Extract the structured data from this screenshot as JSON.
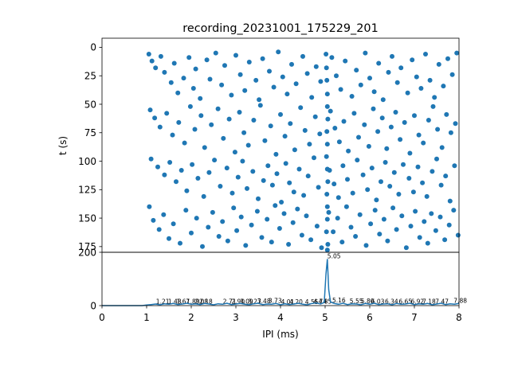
{
  "chart_data": [
    {
      "type": "scatter",
      "title": "recording_20231001_175229_201",
      "xlabel": "",
      "ylabel": "t (s)",
      "xlim": [
        0,
        8
      ],
      "ylim": [
        180,
        -8
      ],
      "y_inverted": true,
      "yticks": [
        0,
        25,
        50,
        75,
        100,
        125,
        150,
        175
      ],
      "color": "#1f77b4",
      "points": [
        [
          1.05,
          6
        ],
        [
          1.12,
          12
        ],
        [
          1.2,
          18
        ],
        [
          1.32,
          8
        ],
        [
          1.4,
          22
        ],
        [
          1.55,
          31
        ],
        [
          1.62,
          14
        ],
        [
          1.7,
          40
        ],
        [
          1.83,
          27
        ],
        [
          1.95,
          9
        ],
        [
          2.05,
          36
        ],
        [
          2.1,
          19
        ],
        [
          2.2,
          45
        ],
        [
          2.35,
          11
        ],
        [
          2.42,
          28
        ],
        [
          2.55,
          5
        ],
        [
          2.68,
          33
        ],
        [
          2.75,
          16
        ],
        [
          2.9,
          42
        ],
        [
          3.0,
          7
        ],
        [
          3.1,
          24
        ],
        [
          3.2,
          38
        ],
        [
          3.3,
          13
        ],
        [
          3.45,
          29
        ],
        [
          3.52,
          46
        ],
        [
          3.6,
          10
        ],
        [
          3.75,
          21
        ],
        [
          3.85,
          35
        ],
        [
          3.95,
          4
        ],
        [
          4.05,
          26
        ],
        [
          4.15,
          41
        ],
        [
          4.25,
          15
        ],
        [
          4.35,
          32
        ],
        [
          4.5,
          8
        ],
        [
          4.6,
          23
        ],
        [
          4.7,
          44
        ],
        [
          4.8,
          17
        ],
        [
          4.9,
          30
        ],
        [
          5.02,
          6
        ],
        [
          5.03,
          18
        ],
        [
          5.04,
          29
        ],
        [
          5.05,
          41
        ],
        [
          5.05,
          52
        ],
        [
          5.06,
          63
        ],
        [
          5.04,
          74
        ],
        [
          5.05,
          85
        ],
        [
          5.03,
          96
        ],
        [
          5.05,
          107
        ],
        [
          5.06,
          118
        ],
        [
          5.04,
          129
        ],
        [
          5.05,
          140
        ],
        [
          5.05,
          151
        ],
        [
          5.03,
          162
        ],
        [
          5.06,
          173
        ],
        [
          5.05,
          178
        ],
        [
          5.15,
          9
        ],
        [
          5.25,
          25
        ],
        [
          5.35,
          37
        ],
        [
          5.45,
          12
        ],
        [
          5.6,
          43
        ],
        [
          5.7,
          20
        ],
        [
          5.8,
          33
        ],
        [
          5.9,
          5
        ],
        [
          6.0,
          27
        ],
        [
          6.1,
          39
        ],
        [
          6.2,
          14
        ],
        [
          6.3,
          46
        ],
        [
          6.42,
          22
        ],
        [
          6.5,
          8
        ],
        [
          6.62,
          31
        ],
        [
          6.7,
          18
        ],
        [
          6.85,
          40
        ],
        [
          6.95,
          11
        ],
        [
          7.05,
          26
        ],
        [
          7.15,
          36
        ],
        [
          7.25,
          6
        ],
        [
          7.35,
          29
        ],
        [
          7.45,
          44
        ],
        [
          7.55,
          15
        ],
        [
          7.65,
          34
        ],
        [
          7.75,
          10
        ],
        [
          7.85,
          24
        ],
        [
          7.95,
          5
        ],
        [
          1.08,
          55
        ],
        [
          1.18,
          62
        ],
        [
          1.3,
          70
        ],
        [
          1.45,
          58
        ],
        [
          1.58,
          77
        ],
        [
          1.72,
          66
        ],
        [
          1.85,
          84
        ],
        [
          1.98,
          52
        ],
        [
          2.08,
          72
        ],
        [
          2.22,
          60
        ],
        [
          2.3,
          88
        ],
        [
          2.45,
          68
        ],
        [
          2.6,
          54
        ],
        [
          2.72,
          80
        ],
        [
          2.85,
          63
        ],
        [
          2.98,
          92
        ],
        [
          3.08,
          57
        ],
        [
          3.18,
          75
        ],
        [
          3.28,
          86
        ],
        [
          3.4,
          64
        ],
        [
          3.55,
          51
        ],
        [
          3.65,
          82
        ],
        [
          3.78,
          69
        ],
        [
          3.9,
          94
        ],
        [
          4.0,
          59
        ],
        [
          4.1,
          78
        ],
        [
          4.22,
          67
        ],
        [
          4.32,
          90
        ],
        [
          4.45,
          53
        ],
        [
          4.55,
          73
        ],
        [
          4.65,
          85
        ],
        [
          4.78,
          61
        ],
        [
          4.88,
          76
        ],
        [
          5.12,
          56
        ],
        [
          5.22,
          71
        ],
        [
          5.32,
          83
        ],
        [
          5.42,
          65
        ],
        [
          5.52,
          91
        ],
        [
          5.65,
          58
        ],
        [
          5.75,
          79
        ],
        [
          5.88,
          68
        ],
        [
          5.98,
          87
        ],
        [
          6.08,
          54
        ],
        [
          6.18,
          74
        ],
        [
          6.28,
          62
        ],
        [
          6.38,
          89
        ],
        [
          6.48,
          70
        ],
        [
          6.58,
          57
        ],
        [
          6.68,
          81
        ],
        [
          6.78,
          66
        ],
        [
          6.9,
          93
        ],
        [
          7.0,
          60
        ],
        [
          7.1,
          77
        ],
        [
          7.2,
          84
        ],
        [
          7.32,
          64
        ],
        [
          7.42,
          52
        ],
        [
          7.52,
          72
        ],
        [
          7.62,
          88
        ],
        [
          7.72,
          59
        ],
        [
          7.82,
          75
        ],
        [
          7.92,
          67
        ],
        [
          1.1,
          98
        ],
        [
          1.25,
          105
        ],
        [
          1.4,
          112
        ],
        [
          1.52,
          101
        ],
        [
          1.66,
          118
        ],
        [
          1.78,
          108
        ],
        [
          1.9,
          126
        ],
        [
          2.02,
          103
        ],
        [
          2.15,
          115
        ],
        [
          2.28,
          131
        ],
        [
          2.4,
          110
        ],
        [
          2.52,
          99
        ],
        [
          2.65,
          122
        ],
        [
          2.8,
          106
        ],
        [
          2.92,
          128
        ],
        [
          3.05,
          114
        ],
        [
          3.15,
          100
        ],
        [
          3.25,
          124
        ],
        [
          3.38,
          109
        ],
        [
          3.5,
          133
        ],
        [
          3.62,
          117
        ],
        [
          3.72,
          104
        ],
        [
          3.82,
          121
        ],
        [
          3.92,
          111
        ],
        [
          4.02,
          136
        ],
        [
          4.12,
          102
        ],
        [
          4.2,
          119
        ],
        [
          4.3,
          127
        ],
        [
          4.42,
          107
        ],
        [
          4.52,
          130
        ],
        [
          4.62,
          113
        ],
        [
          4.75,
          97
        ],
        [
          4.85,
          123
        ],
        [
          5.1,
          108
        ],
        [
          5.2,
          120
        ],
        [
          5.3,
          132
        ],
        [
          5.4,
          104
        ],
        [
          5.5,
          116
        ],
        [
          5.62,
          128
        ],
        [
          5.72,
          99
        ],
        [
          5.85,
          112
        ],
        [
          5.95,
          125
        ],
        [
          6.05,
          106
        ],
        [
          6.15,
          134
        ],
        [
          6.25,
          118
        ],
        [
          6.35,
          101
        ],
        [
          6.45,
          122
        ],
        [
          6.55,
          110
        ],
        [
          6.65,
          129
        ],
        [
          6.75,
          103
        ],
        [
          6.88,
          115
        ],
        [
          6.98,
          127
        ],
        [
          7.08,
          105
        ],
        [
          7.18,
          119
        ],
        [
          7.28,
          131
        ],
        [
          7.4,
          109
        ],
        [
          7.5,
          98
        ],
        [
          7.6,
          121
        ],
        [
          7.7,
          113
        ],
        [
          7.8,
          135
        ],
        [
          7.9,
          104
        ],
        [
          1.06,
          140
        ],
        [
          1.15,
          152
        ],
        [
          1.28,
          160
        ],
        [
          1.38,
          147
        ],
        [
          1.5,
          168
        ],
        [
          1.6,
          155
        ],
        [
          1.75,
          172
        ],
        [
          1.88,
          143
        ],
        [
          2.0,
          163
        ],
        [
          2.12,
          150
        ],
        [
          2.25,
          175
        ],
        [
          2.38,
          158
        ],
        [
          2.48,
          145
        ],
        [
          2.62,
          166
        ],
        [
          2.7,
          153
        ],
        [
          2.82,
          170
        ],
        [
          2.95,
          141
        ],
        [
          3.02,
          161
        ],
        [
          3.12,
          149
        ],
        [
          3.22,
          174
        ],
        [
          3.35,
          156
        ],
        [
          3.48,
          144
        ],
        [
          3.58,
          167
        ],
        [
          3.7,
          151
        ],
        [
          3.8,
          171
        ],
        [
          3.88,
          139
        ],
        [
          3.98,
          159
        ],
        [
          4.08,
          146
        ],
        [
          4.18,
          173
        ],
        [
          4.28,
          154
        ],
        [
          4.38,
          142
        ],
        [
          4.48,
          165
        ],
        [
          4.58,
          148
        ],
        [
          4.68,
          169
        ],
        [
          4.82,
          157
        ],
        [
          4.92,
          176
        ],
        [
          5.08,
          145
        ],
        [
          5.18,
          162
        ],
        [
          5.28,
          150
        ],
        [
          5.38,
          171
        ],
        [
          5.48,
          140
        ],
        [
          5.58,
          158
        ],
        [
          5.68,
          166
        ],
        [
          5.78,
          147
        ],
        [
          5.92,
          174
        ],
        [
          6.02,
          155
        ],
        [
          6.12,
          143
        ],
        [
          6.22,
          164
        ],
        [
          6.32,
          151
        ],
        [
          6.4,
          170
        ],
        [
          6.52,
          141
        ],
        [
          6.6,
          160
        ],
        [
          6.72,
          148
        ],
        [
          6.82,
          176
        ],
        [
          6.92,
          157
        ],
        [
          7.02,
          144
        ],
        [
          7.12,
          167
        ],
        [
          7.22,
          153
        ],
        [
          7.3,
          172
        ],
        [
          7.38,
          146
        ],
        [
          7.48,
          161
        ],
        [
          7.58,
          149
        ],
        [
          7.68,
          169
        ],
        [
          7.78,
          156
        ],
        [
          7.88,
          143
        ],
        [
          7.98,
          165
        ]
      ]
    },
    {
      "type": "line",
      "xlabel": "IPI (ms)",
      "ylabel": "",
      "xlim": [
        0,
        8
      ],
      "ylim": [
        0,
        200
      ],
      "xticks": [
        0,
        1,
        2,
        3,
        4,
        5,
        6,
        7,
        8
      ],
      "yticks": [
        0,
        200
      ],
      "color": "#1f77b4",
      "x": [
        0,
        0.5,
        0.9,
        1.0,
        1.1,
        1.2,
        1.3,
        1.4,
        1.5,
        1.6,
        1.7,
        1.8,
        1.9,
        2.0,
        2.1,
        2.2,
        2.3,
        2.4,
        2.5,
        2.6,
        2.7,
        2.8,
        2.9,
        3.0,
        3.1,
        3.2,
        3.3,
        3.4,
        3.5,
        3.6,
        3.7,
        3.8,
        3.9,
        4.0,
        4.1,
        4.2,
        4.3,
        4.4,
        4.5,
        4.6,
        4.7,
        4.8,
        4.9,
        4.98,
        5.02,
        5.05,
        5.08,
        5.12,
        5.2,
        5.3,
        5.4,
        5.5,
        5.6,
        5.7,
        5.8,
        5.9,
        6.0,
        6.1,
        6.2,
        6.3,
        6.4,
        6.5,
        6.6,
        6.7,
        6.8,
        6.9,
        7.0,
        7.1,
        7.2,
        7.3,
        7.4,
        7.5,
        7.6,
        7.7,
        7.8,
        7.9,
        8.0
      ],
      "y": [
        0,
        0,
        0,
        2,
        4,
        6,
        3,
        7,
        5,
        8,
        4,
        6,
        9,
        5,
        7,
        4,
        8,
        6,
        3,
        7,
        5,
        9,
        4,
        6,
        8,
        5,
        3,
        7,
        9,
        4,
        6,
        5,
        8,
        3,
        7,
        4,
        6,
        9,
        5,
        3,
        8,
        10,
        6,
        12,
        120,
        175,
        60,
        14,
        8,
        5,
        9,
        4,
        7,
        6,
        3,
        8,
        5,
        9,
        4,
        6,
        7,
        3,
        8,
        5,
        6,
        9,
        4,
        7,
        5,
        8,
        3,
        6,
        9,
        4,
        7,
        5,
        8
      ],
      "peak_labels": [
        {
          "x": 1.21,
          "y": 5,
          "text": "1.21"
        },
        {
          "x": 1.48,
          "y": 5,
          "text": "1.48"
        },
        {
          "x": 1.67,
          "y": 5,
          "text": "1.67"
        },
        {
          "x": 1.89,
          "y": 5,
          "text": "1.89"
        },
        {
          "x": 2.08,
          "y": 5,
          "text": "2.08"
        },
        {
          "x": 2.18,
          "y": 5,
          "text": "2.18"
        },
        {
          "x": 2.71,
          "y": 4,
          "text": "2.71"
        },
        {
          "x": 2.9,
          "y": 4,
          "text": "2.90"
        },
        {
          "x": 3.09,
          "y": 4,
          "text": "3.09"
        },
        {
          "x": 3.27,
          "y": 4,
          "text": "3.27"
        },
        {
          "x": 3.48,
          "y": 6,
          "text": "3.48"
        },
        {
          "x": 3.73,
          "y": 7,
          "text": "3.73"
        },
        {
          "x": 4.01,
          "y": 3,
          "text": "4.01"
        },
        {
          "x": 4.2,
          "y": 3,
          "text": "4.20"
        },
        {
          "x": 4.55,
          "y": 3,
          "text": "4.55"
        },
        {
          "x": 4.74,
          "y": 4,
          "text": "4.74"
        },
        {
          "x": 4.85,
          "y": 4,
          "text": "4.85"
        },
        {
          "x": 5.05,
          "y": 175,
          "text": "5.05"
        },
        {
          "x": 5.16,
          "y": 9,
          "text": "5.16"
        },
        {
          "x": 5.55,
          "y": 6,
          "text": "5.55"
        },
        {
          "x": 5.8,
          "y": 6,
          "text": "5.80"
        },
        {
          "x": 6.03,
          "y": 4,
          "text": "6.03"
        },
        {
          "x": 6.34,
          "y": 4,
          "text": "6.34"
        },
        {
          "x": 6.65,
          "y": 5,
          "text": "6.65"
        },
        {
          "x": 6.92,
          "y": 5,
          "text": "6.92"
        },
        {
          "x": 7.18,
          "y": 4,
          "text": "7.18"
        },
        {
          "x": 7.47,
          "y": 4,
          "text": "7.47"
        },
        {
          "x": 7.88,
          "y": 8,
          "text": "7.88"
        }
      ]
    }
  ]
}
